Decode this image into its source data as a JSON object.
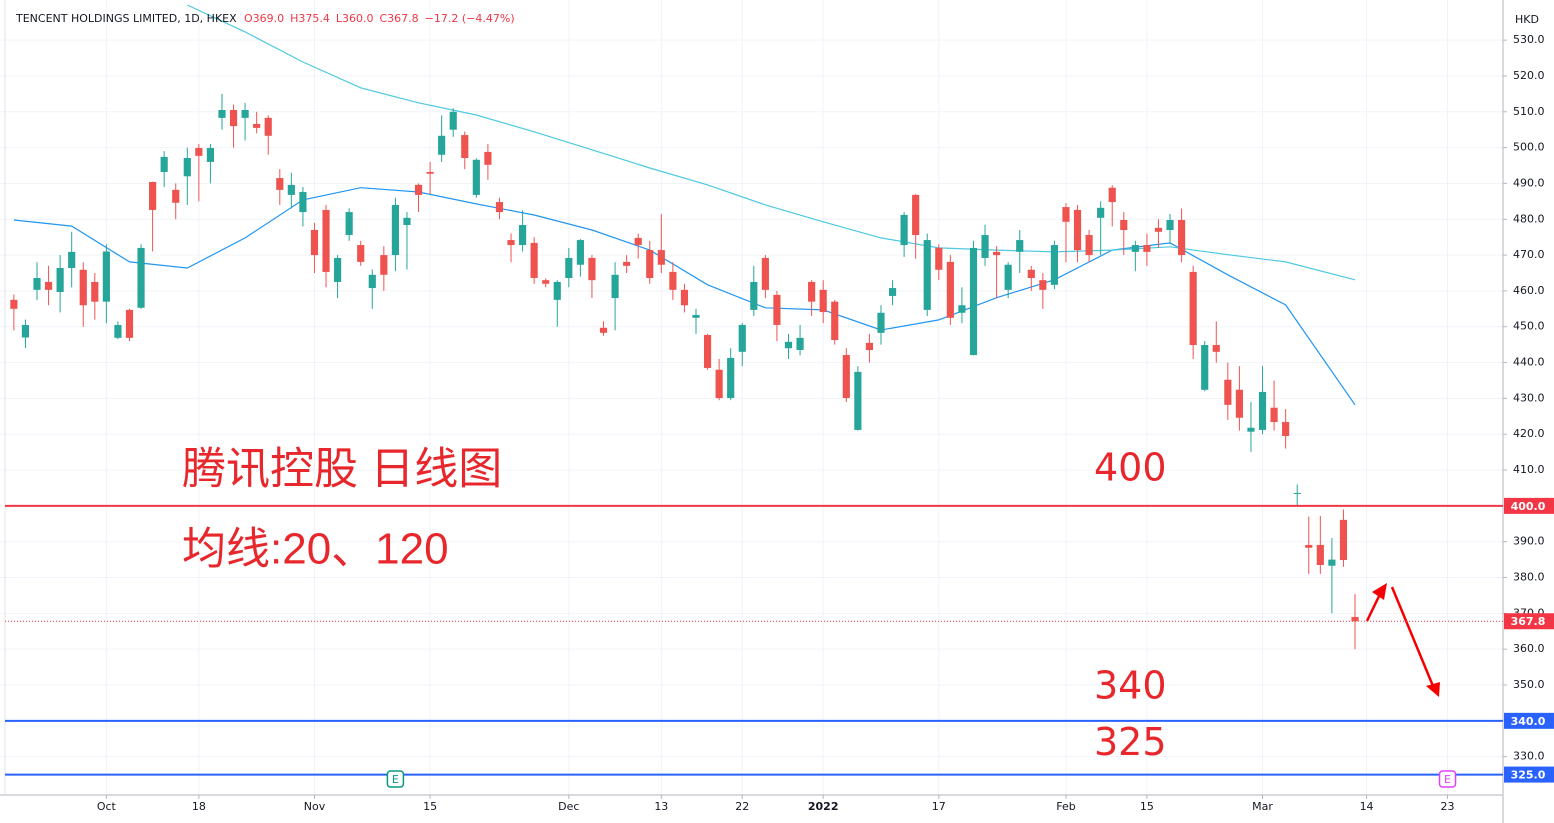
{
  "chart_data": {
    "type": "candlestick",
    "symbol": "TENCENT HOLDINGS LIMITED, 1D, HKEX",
    "ohlc_labels": [
      "O369.0",
      "H375.4",
      "L360.0",
      "C367.8",
      "−17.2 (−4.47%)"
    ],
    "currency": "HKD",
    "annotations": [
      "腾讯控股 日线图",
      "均线:20、120"
    ],
    "up_color": "#26a69a",
    "down_color": "#ef5350",
    "open": [
      457.5,
      447,
      460.3,
      462.5,
      459.7,
      466.4,
      465.9,
      462.5,
      457,
      446.9,
      454.7,
      455.3,
      490.4,
      493.2,
      488.2,
      492,
      499.9,
      496,
      508.3,
      510.5,
      508.3,
      506.6,
      508.3,
      491.5,
      486.8,
      482,
      477,
      482.6,
      462.5,
      475.6,
      472.8,
      460.8,
      470,
      470,
      478.4,
      489.6,
      493.2,
      498,
      505,
      503.5,
      486.8,
      498.8,
      484.8,
      474.2,
      472.8,
      473.4,
      463,
      457.5,
      463.6,
      467.3,
      469.2,
      449.7,
      458,
      468.1,
      474.8,
      471.4,
      471.4,
      465.3,
      460.3,
      452.5,
      447.7,
      438,
      430.1,
      443,
      454.7,
      469.2,
      458.9,
      444,
      443.5,
      462.5,
      460.3,
      457,
      442.1,
      421.2,
      445.5,
      448.3,
      458.6,
      472.8,
      486.8,
      454.7,
      472,
      468.1,
      453.9,
      442.1,
      469.2,
      470.9,
      460.3,
      470.9,
      465.9,
      463,
      461.7,
      483.4,
      482.6,
      475.6,
      480.4,
      488.8,
      479.8,
      470.9,
      472.8,
      477.6,
      477,
      479.8,
      465.3,
      432.4,
      444.9,
      435.2,
      432.4,
      420.7,
      421.2,
      427.4,
      423.4,
      403.4,
      389.1,
      389.1,
      383.3,
      396.1,
      369
    ],
    "high": [
      459,
      452,
      468,
      467,
      470,
      476.5,
      468,
      465,
      473,
      451.5,
      455,
      473,
      490.5,
      499,
      490,
      500,
      501,
      501,
      515,
      512,
      512.5,
      510,
      509,
      494,
      493,
      489,
      479,
      484,
      470,
      483,
      474,
      466,
      472.5,
      486,
      482,
      490,
      496,
      509,
      511,
      504.5,
      497,
      501,
      486,
      476,
      482.5,
      475,
      463.5,
      463,
      472,
      474.5,
      470,
      451.5,
      468,
      470,
      476,
      474,
      481.4,
      468,
      462,
      455,
      448,
      441,
      444,
      451,
      467,
      470,
      460,
      448,
      450.5,
      463,
      463,
      457.5,
      444,
      439,
      448,
      456,
      463,
      482,
      487,
      476,
      473,
      470,
      461,
      474,
      478.5,
      472.5,
      468,
      477,
      467,
      465,
      474,
      484.5,
      484,
      477,
      485,
      489.5,
      482,
      474,
      476,
      480,
      481.5,
      483,
      467,
      446,
      451.5,
      440,
      439,
      429,
      439,
      435,
      427,
      406,
      397,
      397.2,
      391,
      399,
      375.4
    ],
    "low": [
      449,
      444,
      457.5,
      456,
      454,
      461,
      450,
      452,
      451,
      446.5,
      446,
      455,
      471,
      489,
      480,
      484,
      485,
      490,
      505,
      500,
      502,
      504,
      498,
      484,
      483,
      478,
      465,
      461,
      458,
      474,
      467,
      455,
      460,
      465.5,
      466,
      482,
      487,
      496,
      503,
      494,
      486,
      491,
      480,
      468,
      471,
      462,
      461,
      450,
      461,
      464,
      458,
      447.5,
      449,
      465,
      469,
      462,
      465,
      457.5,
      454,
      448,
      438,
      429.5,
      429.5,
      439,
      453,
      458,
      446,
      441,
      442,
      453,
      451,
      445,
      429,
      421,
      440,
      445,
      456,
      469.5,
      469,
      453,
      463,
      450.5,
      451,
      442,
      467,
      458,
      458,
      465,
      460,
      455,
      460.5,
      468,
      468,
      468,
      470,
      478,
      470,
      465.5,
      467,
      472,
      473,
      468,
      441,
      432,
      440,
      424,
      421,
      415,
      420,
      421,
      416,
      400,
      381,
      381,
      370,
      383,
      360
    ],
    "close": [
      455,
      450.5,
      463.6,
      460.3,
      466.4,
      470.9,
      456,
      457,
      471,
      450.5,
      446.9,
      472,
      482.6,
      497.4,
      484.6,
      497.1,
      497.7,
      499.9,
      510.5,
      506,
      510.5,
      505.5,
      503.3,
      488.2,
      489.6,
      487.6,
      470,
      465.3,
      469.2,
      482,
      468.1,
      464.5,
      464.5,
      484,
      480.4,
      486.8,
      492.7,
      503.3,
      510,
      497.1,
      496.6,
      495.2,
      482,
      472.8,
      478.4,
      463.6,
      462,
      462.5,
      469.2,
      474.2,
      463,
      448.3,
      464.5,
      467,
      472.8,
      463.6,
      467.3,
      460.3,
      456,
      453.3,
      438.5,
      430.1,
      441.3,
      450.5,
      462.5,
      460.3,
      450.5,
      445.8,
      446.9,
      457,
      454.1,
      446.3,
      430.1,
      437.4,
      443.5,
      453.9,
      460.8,
      481.2,
      475.6,
      474.2,
      465.9,
      452.5,
      456,
      472,
      475.6,
      470,
      467.3,
      474.2,
      463.6,
      460.3,
      472.8,
      479.3,
      471.4,
      470,
      483.2,
      484.8,
      477,
      472.8,
      470.9,
      476.5,
      479.8,
      470,
      444.9,
      444.9,
      443,
      428.2,
      424.6,
      421.8,
      431.8,
      423.4,
      419.5,
      403.6,
      388.3,
      383.5,
      385,
      384.9,
      367.8
    ],
    "lines": [
      {
        "color": "#2196f3",
        "x": [
          0,
          5,
          10,
          15,
          20,
          25,
          30,
          35,
          40,
          45,
          50,
          55,
          60,
          65,
          70,
          75,
          80,
          85,
          90,
          95,
          100,
          105,
          110,
          116
        ],
        "values": [
          479.8,
          478.1,
          468.1,
          466.4,
          474.8,
          485.4,
          488.8,
          487.6,
          484.3,
          481.2,
          477,
          471.4,
          461.7,
          455.3,
          454.7,
          449.1,
          451.9,
          458.1,
          463.1,
          471.4,
          473.4,
          464.5,
          456.1,
          428.2
        ]
      },
      {
        "color": "#4dc9e0",
        "x": [
          15,
          20,
          25,
          30,
          35,
          40,
          45,
          50,
          55,
          60,
          65,
          70,
          75,
          80,
          85,
          90,
          95,
          100,
          105,
          110,
          116
        ],
        "values": [
          539.8,
          532.3,
          523.9,
          516.7,
          512.5,
          509.1,
          504.4,
          499.4,
          494.3,
          489.6,
          484,
          479.3,
          474.8,
          472,
          471.4,
          470.9,
          471.4,
          472.3,
          470.1,
          468.1,
          463.1
        ]
      }
    ],
    "levels": [
      {
        "value": 400,
        "label": "400.0",
        "note": "400",
        "color": "#f23645"
      },
      {
        "value": 340,
        "label": "340.0",
        "note": "340",
        "color": "#2962ff"
      },
      {
        "value": 325,
        "label": "325.0",
        "note": "325",
        "color": "#2962ff"
      }
    ],
    "last": {
      "value": 367.8,
      "label": "367.8",
      "color": "#f23645"
    },
    "events": [
      {
        "x": 33,
        "label": "E",
        "color": "#089981"
      },
      {
        "x": 124,
        "label": "E",
        "color": "#e040fb"
      }
    ],
    "xlim": [
      -1.2,
      128.8
    ],
    "ylim": [
      319.3,
      541.2
    ],
    "yticks": [
      {
        "value": 330,
        "label": "330.0"
      },
      {
        "value": 350,
        "label": "350.0"
      },
      {
        "value": 360,
        "label": "360.0"
      },
      {
        "value": 370,
        "label": "370.0"
      },
      {
        "value": 380,
        "label": "380.0"
      },
      {
        "value": 390,
        "label": "390.0"
      },
      {
        "value": 410,
        "label": "410.0"
      },
      {
        "value": 420,
        "label": "420.0"
      },
      {
        "value": 430,
        "label": "430.0"
      },
      {
        "value": 440,
        "label": "440.0"
      },
      {
        "value": 450,
        "label": "450.0"
      },
      {
        "value": 460,
        "label": "460.0"
      },
      {
        "value": 470,
        "label": "470.0"
      },
      {
        "value": 480,
        "label": "480.0"
      },
      {
        "value": 490,
        "label": "490.0"
      },
      {
        "value": 500,
        "label": "500.0"
      },
      {
        "value": 510,
        "label": "510.0"
      },
      {
        "value": 520,
        "label": "520.0"
      },
      {
        "value": 530,
        "label": "530.0"
      }
    ],
    "xticks": [
      {
        "value": 8,
        "label": "Oct"
      },
      {
        "value": 16,
        "label": "18"
      },
      {
        "value": 26,
        "label": "Nov"
      },
      {
        "value": 36,
        "label": "15"
      },
      {
        "value": 48,
        "label": "Dec"
      },
      {
        "value": 56,
        "label": "13"
      },
      {
        "value": 63,
        "label": "22"
      },
      {
        "value": 70,
        "label": "2022"
      },
      {
        "value": 80,
        "label": "17"
      },
      {
        "value": 91,
        "label": "Feb"
      },
      {
        "value": 98,
        "label": "15"
      },
      {
        "value": 108,
        "label": "Mar"
      },
      {
        "value": 117,
        "label": "14"
      },
      {
        "value": 124,
        "label": "23"
      }
    ],
    "grid": true
  }
}
